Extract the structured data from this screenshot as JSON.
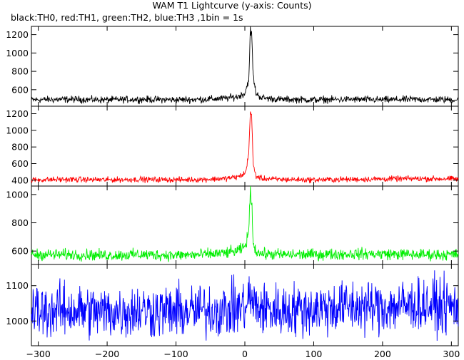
{
  "chart_data": {
    "type": "line",
    "title": "WAM T1 Lightcurve (y-axis: Counts)",
    "subtitle": "black:TH0, red:TH1, green:TH2, blue:TH3 ,1bin = 1s",
    "xlabel": "",
    "ylabel": "",
    "xlim": [
      -310,
      310
    ],
    "xticks": [
      -300,
      -200,
      -100,
      0,
      100,
      200,
      300
    ],
    "grid": false,
    "panels": [
      {
        "name": "TH0",
        "color": "#000000",
        "ylim": [
          420,
          1290
        ],
        "yticks": [
          600,
          800,
          1000,
          1200
        ],
        "series_points": [
          [
            -310,
            490
          ],
          [
            -250,
            495
          ],
          [
            -200,
            490
          ],
          [
            -150,
            495
          ],
          [
            -100,
            490
          ],
          [
            -60,
            495
          ],
          [
            -30,
            505
          ],
          [
            -10,
            525
          ],
          [
            0,
            560
          ],
          [
            3,
            640
          ],
          [
            6,
            730
          ],
          [
            8,
            1250
          ],
          [
            10,
            1200
          ],
          [
            12,
            760
          ],
          [
            16,
            560
          ],
          [
            25,
            510
          ],
          [
            50,
            495
          ],
          [
            100,
            490
          ],
          [
            150,
            495
          ],
          [
            200,
            490
          ],
          [
            250,
            495
          ],
          [
            310,
            490
          ]
        ]
      },
      {
        "name": "TH1",
        "color": "#ff0000",
        "ylim": [
          330,
          1290
        ],
        "yticks": [
          400,
          600,
          800,
          1000,
          1200
        ],
        "series_points": [
          [
            -310,
            405
          ],
          [
            -250,
            410
          ],
          [
            -200,
            405
          ],
          [
            -150,
            410
          ],
          [
            -100,
            405
          ],
          [
            -60,
            410
          ],
          [
            -30,
            420
          ],
          [
            -10,
            440
          ],
          [
            0,
            480
          ],
          [
            3,
            560
          ],
          [
            6,
            800
          ],
          [
            8,
            1230
          ],
          [
            10,
            1150
          ],
          [
            12,
            600
          ],
          [
            16,
            450
          ],
          [
            25,
            420
          ],
          [
            50,
            410
          ],
          [
            100,
            405
          ],
          [
            150,
            410
          ],
          [
            200,
            415
          ],
          [
            250,
            420
          ],
          [
            310,
            415
          ]
        ]
      },
      {
        "name": "TH2",
        "color": "#00ee00",
        "ylim": [
          505,
          1060
        ],
        "yticks": [
          600,
          800,
          1000
        ],
        "series_points": [
          [
            -310,
            575
          ],
          [
            -250,
            575
          ],
          [
            -200,
            570
          ],
          [
            -150,
            575
          ],
          [
            -100,
            570
          ],
          [
            -60,
            575
          ],
          [
            -30,
            585
          ],
          [
            -10,
            600
          ],
          [
            0,
            630
          ],
          [
            3,
            680
          ],
          [
            6,
            760
          ],
          [
            8,
            1040
          ],
          [
            10,
            960
          ],
          [
            12,
            660
          ],
          [
            16,
            600
          ],
          [
            25,
            580
          ],
          [
            50,
            575
          ],
          [
            100,
            575
          ],
          [
            150,
            580
          ],
          [
            200,
            580
          ],
          [
            250,
            575
          ],
          [
            310,
            575
          ]
        ]
      },
      {
        "name": "TH3",
        "color": "#0000ff",
        "ylim": [
          930,
          1160
        ],
        "yticks": [
          1000,
          1100
        ],
        "series_points": [
          [
            -310,
            1030
          ],
          [
            -250,
            1030
          ],
          [
            -200,
            1025
          ],
          [
            -150,
            1030
          ],
          [
            -100,
            1025
          ],
          [
            -60,
            1030
          ],
          [
            -30,
            1030
          ],
          [
            -10,
            1035
          ],
          [
            0,
            1040
          ],
          [
            8,
            1070
          ],
          [
            12,
            1045
          ],
          [
            25,
            1035
          ],
          [
            50,
            1030
          ],
          [
            100,
            1035
          ],
          [
            150,
            1040
          ],
          [
            200,
            1040
          ],
          [
            250,
            1045
          ],
          [
            310,
            1040
          ]
        ]
      }
    ]
  }
}
